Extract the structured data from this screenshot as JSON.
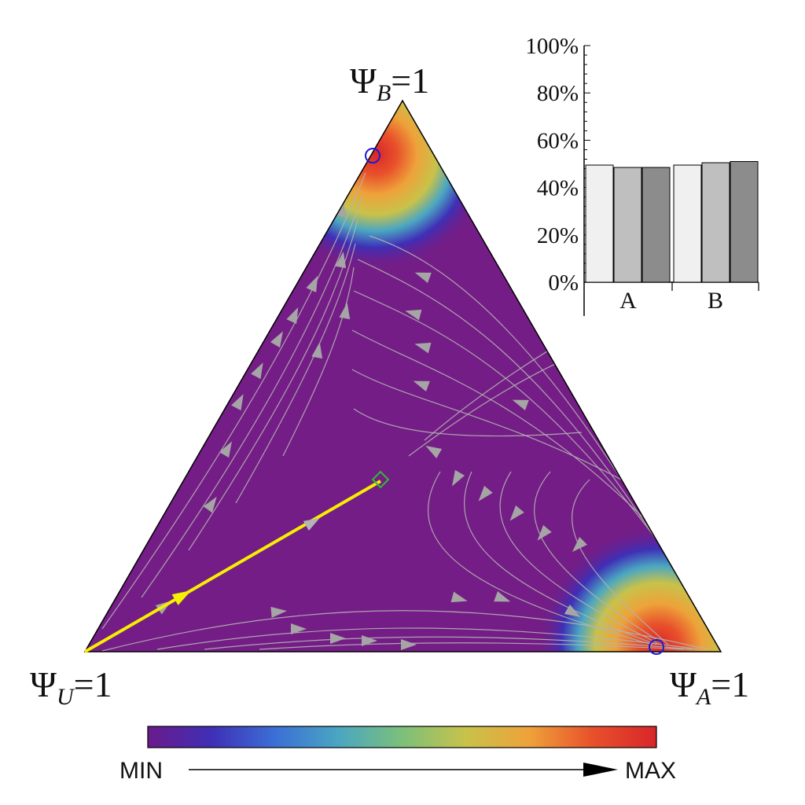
{
  "vertices": {
    "b": {
      "prefix": "Ψ",
      "sub": "B",
      "suffix": "=1"
    },
    "u": {
      "prefix": "Ψ",
      "sub": "U",
      "suffix": "=1"
    },
    "a": {
      "prefix": "Ψ",
      "sub": "A",
      "suffix": "=1"
    }
  },
  "colorbar": {
    "min_label": "MIN",
    "max_label": "MAX",
    "stops": [
      "#6a1b8a",
      "#3f2fb6",
      "#3b6fd6",
      "#4aa6c2",
      "#7cc07a",
      "#c8c24a",
      "#eea23a",
      "#e8502b",
      "#d8262a"
    ]
  },
  "colors": {
    "background_field": "#741d86",
    "stream": "#b4b4b4",
    "arrow": "#a5a5a5",
    "trajectory": "#f5ef00",
    "fixed_point_interior": "#2fbd2f",
    "fixed_point_vertex": "#1a1ad6"
  },
  "inset_bars": {
    "yticks": [
      "0%",
      "20%",
      "40%",
      "60%",
      "80%",
      "100%"
    ],
    "ylim": [
      0,
      100
    ],
    "categories": [
      {
        "name": "A",
        "values": [
          49.5,
          48.5,
          48.5
        ]
      },
      {
        "name": "B",
        "values": [
          49.5,
          50.5,
          51
        ]
      }
    ],
    "bar_colors": [
      "#f0f0f0",
      "#bfbfbf",
      "#8c8c8c"
    ]
  }
}
